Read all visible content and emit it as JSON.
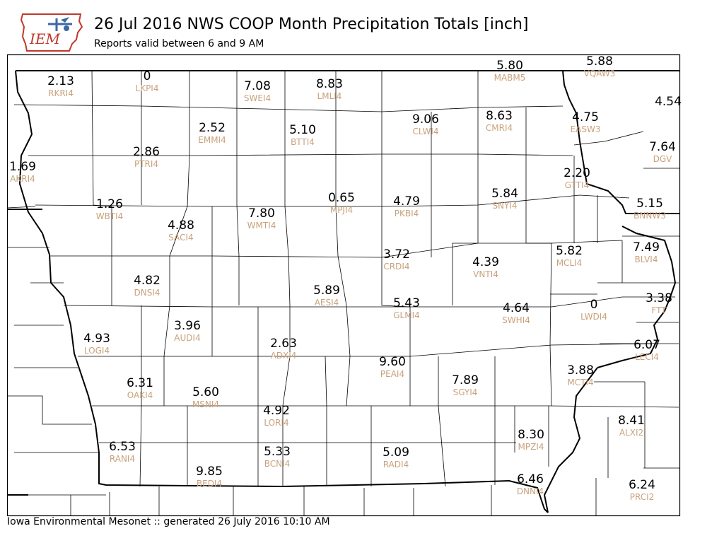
{
  "header": {
    "logo_text": "IEM",
    "title": "26 Jul 2016 NWS COOP Month Precipitation Totals [inch]",
    "subtitle": "Reports valid between 6 and 9 AM"
  },
  "footer": {
    "text": "Iowa Environmental Mesonet :: generated 26 July 2016 10:10 AM"
  },
  "colors": {
    "value_text": "#000000",
    "station_id": "#c8a27c",
    "county_lines": "#000000",
    "logo_red": "#c0392b",
    "logo_blue": "#3b6aa0"
  },
  "stations": [
    {
      "id": "RKRI4",
      "value": "2.13"
    },
    {
      "id": "LKPI4",
      "value": "0"
    },
    {
      "id": "SWEI4",
      "value": "7.08"
    },
    {
      "id": "LMLI4",
      "value": "8.83"
    },
    {
      "id": "MABM5",
      "value": "5.80"
    },
    {
      "id": "VQAW3",
      "value": "5.88"
    },
    {
      "id": "CLWI4",
      "value": "9.06"
    },
    {
      "id": "CMRI4",
      "value": "8.63"
    },
    {
      "id": "EASW3",
      "value": "4.75"
    },
    {
      "id": "",
      "value": "4.54"
    },
    {
      "id": "EMMI4",
      "value": "2.52"
    },
    {
      "id": "BTTI4",
      "value": "5.10"
    },
    {
      "id": "PTRI4",
      "value": "2.86"
    },
    {
      "id": "DGV",
      "value": "7.64"
    },
    {
      "id": "AKRI4",
      "value": "1.69"
    },
    {
      "id": "GTTI4",
      "value": "2.20"
    },
    {
      "id": "WBTI4",
      "value": "1.26"
    },
    {
      "id": "MPJI4",
      "value": "0.65"
    },
    {
      "id": "PKBI4",
      "value": "4.79"
    },
    {
      "id": "SNYI4",
      "value": "5.84"
    },
    {
      "id": "BNNW3",
      "value": "5.15"
    },
    {
      "id": "WMTI4",
      "value": "7.80"
    },
    {
      "id": "SACI4",
      "value": "4.88"
    },
    {
      "id": "MCLI4",
      "value": "5.82"
    },
    {
      "id": "BLVI4",
      "value": "7.49"
    },
    {
      "id": "CRDI4",
      "value": "3.72"
    },
    {
      "id": "VNTI4",
      "value": "4.39"
    },
    {
      "id": "DNSI4",
      "value": "4.82"
    },
    {
      "id": "AESI4",
      "value": "5.89"
    },
    {
      "id": "GLMI4",
      "value": "5.43"
    },
    {
      "id": "SWHI4",
      "value": "4.64"
    },
    {
      "id": "LWDI4",
      "value": "0"
    },
    {
      "id": "FTT",
      "value": "3.38"
    },
    {
      "id": "LOGI4",
      "value": "4.93"
    },
    {
      "id": "AUDI4",
      "value": "3.96"
    },
    {
      "id": "ADXI4",
      "value": "2.63"
    },
    {
      "id": "LECI4",
      "value": "6.07"
    },
    {
      "id": "PEAI4",
      "value": "9.60"
    },
    {
      "id": "MCTI4",
      "value": "3.88"
    },
    {
      "id": "OAKI4",
      "value": "6.31"
    },
    {
      "id": "SGYI4",
      "value": "7.89"
    },
    {
      "id": "MSNI4",
      "value": "5.60"
    },
    {
      "id": "LORI4",
      "value": "4.92"
    },
    {
      "id": "ALXI2",
      "value": "8.41"
    },
    {
      "id": "MPZI4",
      "value": "8.30"
    },
    {
      "id": "RANI4",
      "value": "6.53"
    },
    {
      "id": "BCNI4",
      "value": "5.33"
    },
    {
      "id": "RADI4",
      "value": "5.09"
    },
    {
      "id": "BEDI4",
      "value": "9.85"
    },
    {
      "id": "DNNI4",
      "value": "6.46"
    },
    {
      "id": "PRCI2",
      "value": "6.24"
    }
  ]
}
